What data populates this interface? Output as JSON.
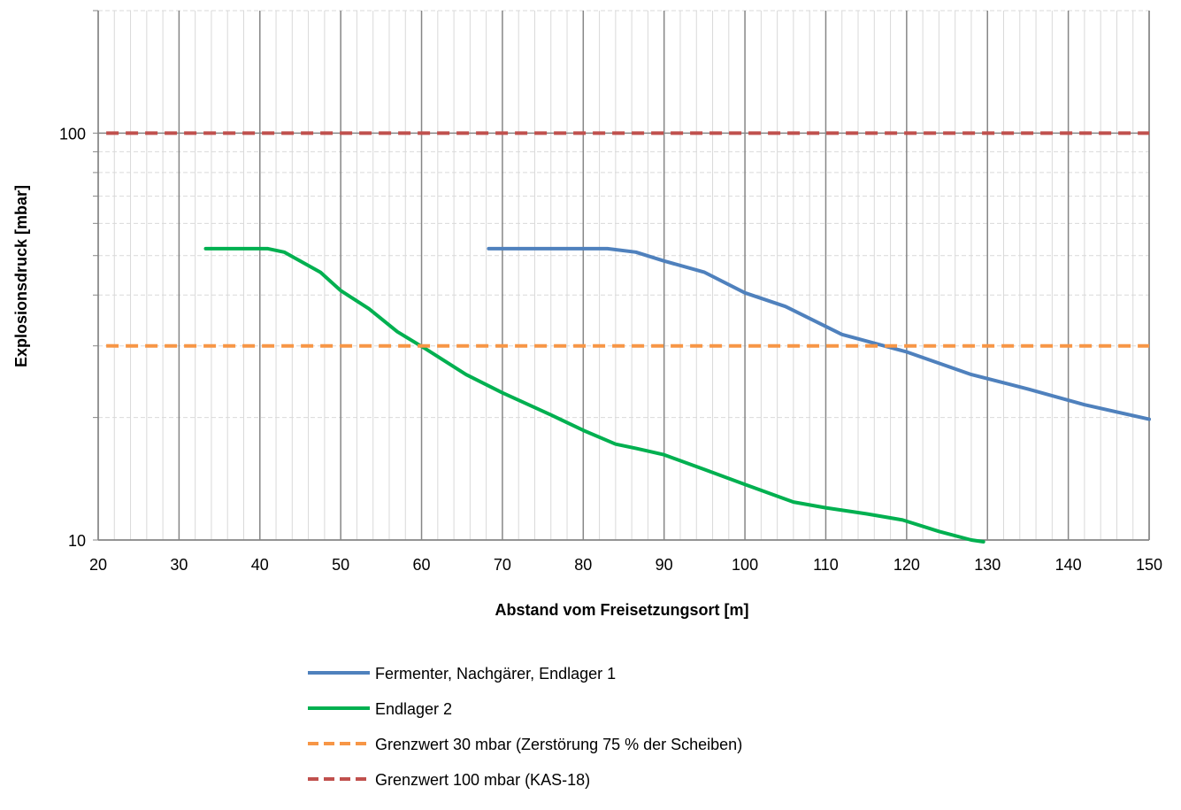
{
  "chart_data": {
    "type": "line",
    "title": "",
    "xlabel": "Abstand vom Freisetzungsort [m]",
    "ylabel": "Explosionsdruck [mbar]",
    "xlim": [
      20,
      150
    ],
    "ylim": [
      10,
      200
    ],
    "y_scale": "log",
    "x_ticks": [
      20,
      30,
      40,
      50,
      60,
      70,
      80,
      90,
      100,
      110,
      120,
      130,
      140,
      150
    ],
    "y_ticks": [
      10,
      100
    ],
    "grid": true,
    "legend_position": "bottom",
    "series": [
      {
        "name": "Fermenter, Nachgärer, Endlager 1",
        "color": "#4F81BD",
        "style": "solid",
        "x": [
          68.3,
          75,
          83,
          86.5,
          90,
          95,
          100,
          105,
          112,
          120,
          128,
          135,
          142,
          150
        ],
        "y": [
          52,
          52,
          52,
          51,
          48.5,
          45.5,
          40.5,
          37.5,
          32,
          29,
          25.5,
          23.5,
          21.5,
          19.8
        ]
      },
      {
        "name": "Endlager 2",
        "color": "#00B050",
        "style": "solid",
        "x": [
          33.3,
          41,
          43,
          47.5,
          50,
          53.5,
          57,
          60.5,
          65.5,
          70,
          76,
          80,
          84,
          86.5,
          90,
          95,
          100,
          106,
          110,
          115,
          119.5,
          124,
          128,
          129.5
        ],
        "y": [
          52,
          52,
          51,
          45.5,
          41,
          37,
          32.5,
          29.5,
          25.5,
          23,
          20.3,
          18.6,
          17.2,
          16.8,
          16.2,
          14.9,
          13.7,
          12.4,
          12.0,
          11.6,
          11.2,
          10.5,
          10.0,
          9.9
        ]
      },
      {
        "name": "Grenzwert 30 mbar (Zerstörung 75 % der Scheiben)",
        "color": "#F79646",
        "style": "dashed",
        "x": [
          21,
          150
        ],
        "y": [
          30,
          30
        ]
      },
      {
        "name": "Grenzwert 100 mbar (KAS-18)",
        "color": "#C0504D",
        "style": "dashed",
        "x": [
          21,
          150
        ],
        "y": [
          100,
          100
        ]
      }
    ]
  }
}
